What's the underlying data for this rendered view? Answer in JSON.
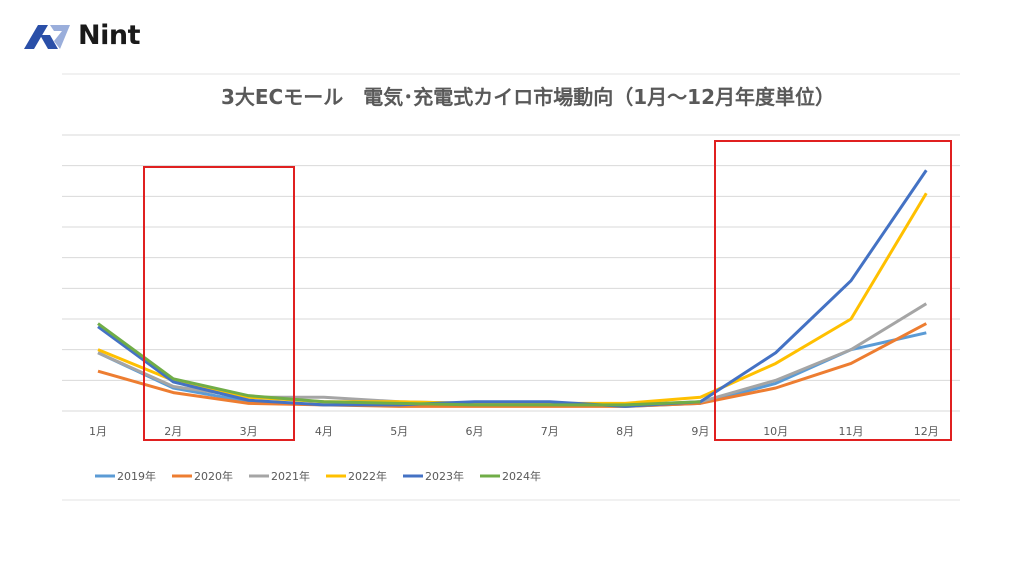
{
  "logo": {
    "text": "Nint"
  },
  "chart_data": {
    "type": "line",
    "title": "3大ECモール　電気･充電式カイロ市場動向（1月～12月年度単位）",
    "xlabel": "",
    "ylabel": "",
    "y_units": "relative (unlabeled axis, gridline units)",
    "ylim": [
      0,
      9
    ],
    "grid": true,
    "legend_position": "bottom-left",
    "categories": [
      "1月",
      "2月",
      "3月",
      "4月",
      "5月",
      "6月",
      "7月",
      "8月",
      "9月",
      "10月",
      "11月",
      "12月"
    ],
    "series": [
      {
        "name": "2019年",
        "color": "#5B9BD5",
        "values": [
          1.9,
          0.75,
          0.3,
          0.2,
          0.2,
          0.2,
          0.2,
          0.15,
          0.25,
          0.9,
          2.0,
          2.55
        ]
      },
      {
        "name": "2020年",
        "color": "#ED7D31",
        "values": [
          1.3,
          0.6,
          0.25,
          0.2,
          0.15,
          0.15,
          0.15,
          0.15,
          0.25,
          0.75,
          1.55,
          2.85
        ]
      },
      {
        "name": "2021年",
        "color": "#A5A5A5",
        "values": [
          1.9,
          0.8,
          0.45,
          0.45,
          0.3,
          0.25,
          0.25,
          0.2,
          0.3,
          1.0,
          2.0,
          3.5
        ]
      },
      {
        "name": "2022年",
        "color": "#FFC000",
        "values": [
          2.0,
          1.0,
          0.45,
          0.3,
          0.3,
          0.25,
          0.25,
          0.25,
          0.45,
          1.55,
          3.0,
          7.1
        ]
      },
      {
        "name": "2023年",
        "color": "#4472C4",
        "values": [
          2.75,
          0.95,
          0.35,
          0.2,
          0.2,
          0.3,
          0.3,
          0.15,
          0.3,
          1.9,
          4.25,
          7.85
        ]
      },
      {
        "name": "2024年",
        "color": "#70AD47",
        "values": [
          2.85,
          1.05,
          0.5,
          0.3,
          0.25,
          0.2,
          0.2,
          0.2,
          0.3,
          null,
          null,
          null
        ]
      }
    ],
    "highlight_color": "#E02020",
    "highlights": [
      {
        "from": "2月",
        "to": "3月"
      },
      {
        "from": "10月",
        "to": "12月"
      }
    ]
  }
}
